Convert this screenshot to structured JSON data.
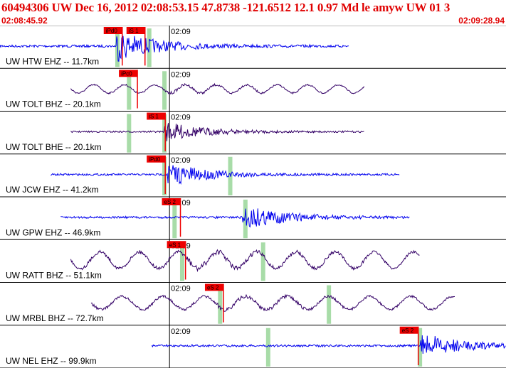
{
  "header": {
    "title": "60494306 UW Dec 16, 2012 02:08:53.15    47.8738 -121.6512 12.1 0.97 Md le amyw UW 01    3",
    "start_time": "02:08:45.92",
    "end_time": "02:09:28.94"
  },
  "colors": {
    "header_text": "#e00000",
    "trace_blue": "#0000ee",
    "trace_purple": "#330066",
    "pick_flag": "#ee0000",
    "window_green": "#a8dca8",
    "theoretical": "#000000"
  },
  "minute_label": "02:09",
  "traces": [
    {
      "station": "UW HTW EHZ -- 11.7km",
      "color": "blue",
      "type": "quake",
      "start": 0.0,
      "end": 0.69,
      "onset": 0.23,
      "amp": 0.7,
      "picks": [
        {
          "label": "iPd0",
          "pos": 0.205,
          "color": "#ee0000"
        },
        {
          "label": "iS 1",
          "pos": 0.25,
          "color": "#ee0000"
        }
      ],
      "windows": [
        0.232,
        0.295
      ]
    },
    {
      "station": "UW TOLT BHZ -- 20.1km",
      "color": "purple",
      "type": "wave",
      "start": 0.14,
      "end": 0.72,
      "onset": 0.325,
      "amp": 0.35,
      "picks": [
        {
          "label": "iPc0",
          "pos": 0.235,
          "color": "#ee0000"
        }
      ],
      "windows": [
        0.255,
        0.325
      ]
    },
    {
      "station": "UW TOLT BHE -- 20.1km",
      "color": "purple",
      "type": "quake",
      "start": 0.14,
      "end": 0.72,
      "onset": 0.325,
      "amp": 0.45,
      "picks": [
        {
          "label": "iS 1",
          "pos": 0.29,
          "color": "#ee0000"
        }
      ],
      "windows": [
        0.255,
        0.325
      ]
    },
    {
      "station": "UW JCW EHZ -- 41.2km",
      "color": "blue",
      "type": "quake",
      "start": 0.1,
      "end": 0.79,
      "onset": 0.33,
      "amp": 0.55,
      "picks": [
        {
          "label": "iPd0",
          "pos": 0.29,
          "color": "#ee0000"
        }
      ],
      "windows": [
        0.325,
        0.455
      ]
    },
    {
      "station": "UW GPW EHZ -- 46.9km",
      "color": "blue",
      "type": "quake",
      "start": 0.12,
      "end": 0.81,
      "onset": 0.48,
      "amp": 0.6,
      "picks": [
        {
          "label": "eS 2",
          "pos": 0.32,
          "color": "#ee0000"
        }
      ],
      "windows": [
        0.345,
        0.485
      ]
    },
    {
      "station": "UW RATT BHZ -- 51.1km",
      "color": "purple",
      "type": "wave",
      "start": 0.14,
      "end": 0.83,
      "onset": 0.37,
      "amp": 0.7,
      "picks": [
        {
          "label": "eS 1",
          "pos": 0.33,
          "color": "#ee0000"
        }
      ],
      "windows": [
        0.36,
        0.52
      ]
    },
    {
      "station": "UW MRBL BHZ -- 72.7km",
      "color": "purple",
      "type": "wave",
      "start": 0.18,
      "end": 0.9,
      "onset": 0.43,
      "amp": 0.55,
      "picks": [
        {
          "label": "eS 2",
          "pos": 0.405,
          "color": "#ee0000"
        }
      ],
      "windows": [
        0.435,
        0.65
      ]
    },
    {
      "station": "UW NEL EHZ -- 99.9km",
      "color": "blue",
      "type": "quake",
      "start": 0.3,
      "end": 1.0,
      "onset": 0.83,
      "amp": 0.6,
      "picks": [
        {
          "label": "eS 2",
          "pos": 0.79,
          "color": "#ee0000"
        }
      ],
      "windows": [
        0.53,
        0.83
      ]
    }
  ]
}
